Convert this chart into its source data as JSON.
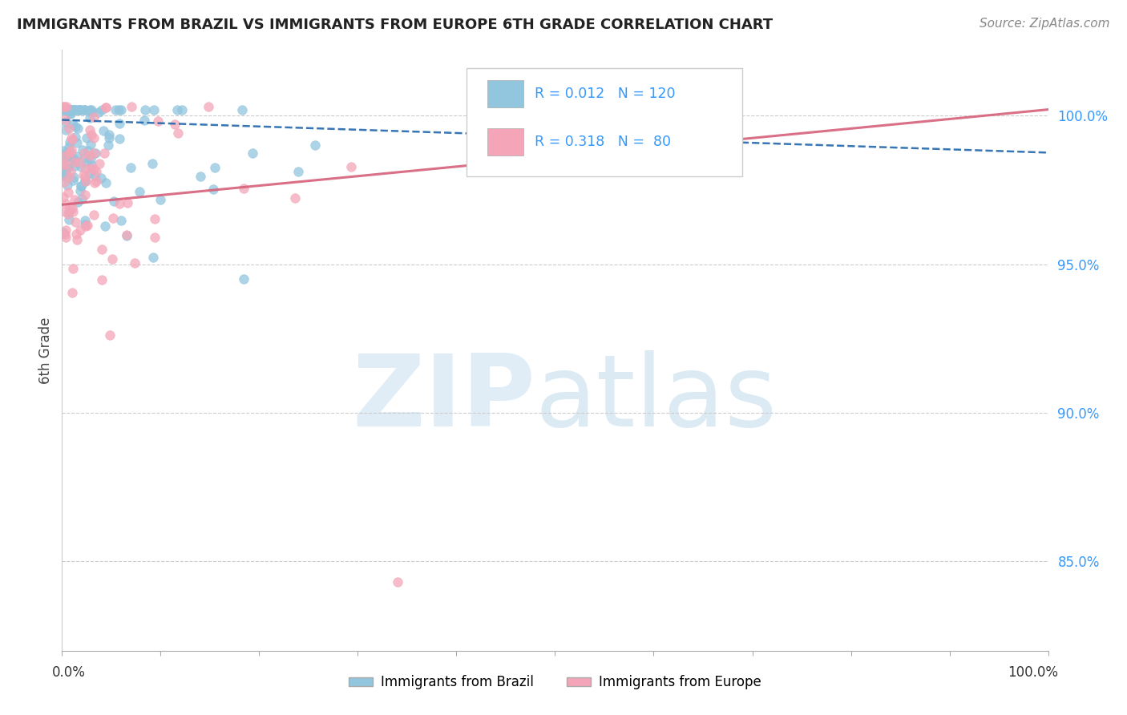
{
  "title": "IMMIGRANTS FROM BRAZIL VS IMMIGRANTS FROM EUROPE 6TH GRADE CORRELATION CHART",
  "source": "Source: ZipAtlas.com",
  "ylabel": "6th Grade",
  "R_brazil": 0.012,
  "N_brazil": 120,
  "R_europe": 0.318,
  "N_europe": 80,
  "brazil_color": "#92c5de",
  "europe_color": "#f4a6b8",
  "brazil_line_color": "#2166ac",
  "europe_line_color": "#d6607a",
  "background_color": "#ffffff",
  "title_fontsize": 13,
  "source_fontsize": 11,
  "xlim": [
    0.0,
    1.0
  ],
  "ylim": [
    0.82,
    1.022
  ],
  "ytick_vals": [
    0.85,
    0.9,
    0.95,
    1.0
  ],
  "ytick_labels": [
    "85.0%",
    "90.0%",
    "95.0%",
    "100.0%"
  ],
  "brazil_trend_y0": 0.9985,
  "brazil_trend_y1": 0.9875,
  "europe_trend_y0": 0.97,
  "europe_trend_y1": 1.002,
  "legend_R1": "R = 0.012",
  "legend_N1": "N = 120",
  "legend_R2": "R = 0.318",
  "legend_N2": "N =  80",
  "watermark_zip": "ZIP",
  "watermark_atlas": "atlas"
}
